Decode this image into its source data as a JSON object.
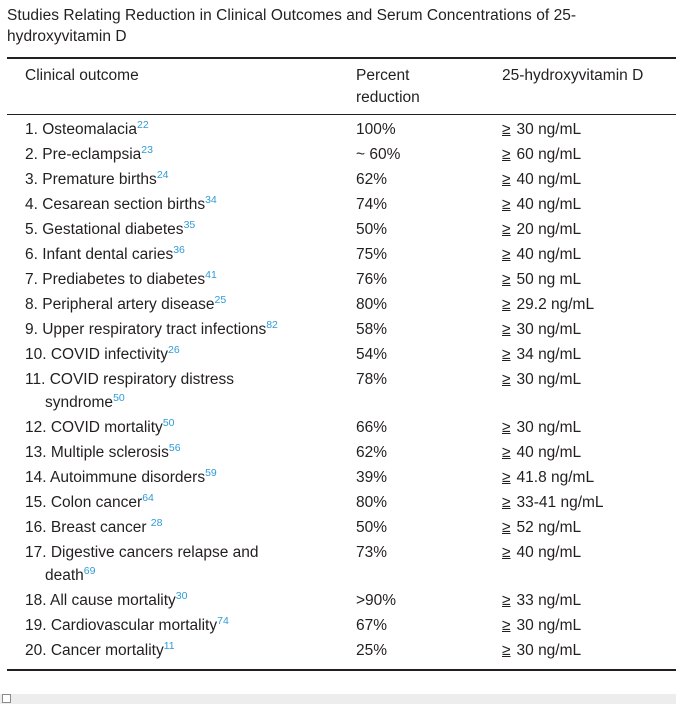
{
  "caption": "Studies Relating Reduction in Clinical Outcomes and Serum Concentrations of 25-hydroxyvitamin D",
  "headers": {
    "outcome": "Clinical outcome",
    "percent": "Percent reduction",
    "concentration": "25-hydroxyvitamin D"
  },
  "rows": [
    {
      "outcome": "1. Osteomalacia",
      "ref": "22",
      "percent": "100%",
      "op": "≥",
      "value": "30 ng/mL"
    },
    {
      "outcome": "2. Pre-eclampsia",
      "ref": "23",
      "percent": "~ 60%",
      "op": "≥",
      "value": "60 ng/mL"
    },
    {
      "outcome": "3. Premature births",
      "ref": "24",
      "percent": "62%",
      "op": "≥",
      "value": "40 ng/mL"
    },
    {
      "outcome": "4. Cesarean section births",
      "ref": "34",
      "percent": "74%",
      "op": "≥",
      "value": "40 ng/mL"
    },
    {
      "outcome": "5. Gestational diabetes",
      "ref": "35",
      "percent": "50%",
      "op": "≥",
      "value": "20 ng/mL"
    },
    {
      "outcome": "6. Infant dental caries",
      "ref": "36",
      "percent": "75%",
      "op": "≥",
      "value": "40 ng/mL"
    },
    {
      "outcome": "7. Prediabetes to diabetes",
      "ref": "41",
      "percent": "76%",
      "op": "≥",
      "value": "50 ng mL"
    },
    {
      "outcome": "8. Peripheral artery disease",
      "ref": "25",
      "percent": "80%",
      "op": "≥",
      "value": "29.2 ng/mL"
    },
    {
      "outcome": "9. Upper respiratory tract infections",
      "ref": "82",
      "percent": "58%",
      "op": "≥",
      "value": "30 ng/mL"
    },
    {
      "outcome": "10. COVID infectivity",
      "ref": "26",
      "percent": "54%",
      "op": "≥",
      "value": "34 ng/mL"
    },
    {
      "outcome": "11. COVID respiratory distress",
      "outcome_cont": "syndrome",
      "ref": "50",
      "percent": "78%",
      "op": "≥",
      "value": "30 ng/mL"
    },
    {
      "outcome": "12. COVID mortality",
      "ref": "50",
      "percent": "66%",
      "op": "≥",
      "value": "30 ng/mL"
    },
    {
      "outcome": "13. Multiple sclerosis",
      "ref": "56",
      "percent": "62%",
      "op": "≥",
      "value": "40 ng/mL"
    },
    {
      "outcome": "14. Autoimmune disorders",
      "ref": "59",
      "percent": "39%",
      "op": "≥",
      "value": "41.8 ng/mL"
    },
    {
      "outcome": "15. Colon cancer",
      "ref": "64",
      "percent": "80%",
      "op": "≥",
      "value": "33-41 ng/mL"
    },
    {
      "outcome": "16. Breast cancer ",
      "ref": "28",
      "percent": "50%",
      "op": "≥",
      "value": "52 ng/mL"
    },
    {
      "outcome": "17. Digestive cancers relapse and",
      "outcome_cont": "death",
      "ref": "69",
      "percent": "73%",
      "op": "≥",
      "value": "40 ng/mL"
    },
    {
      "outcome": "18. All cause mortality",
      "ref": "30",
      "percent": ">90%",
      "op": "≥",
      "value": "33 ng/mL"
    },
    {
      "outcome": "19. Cardiovascular mortality",
      "ref": "74",
      "percent": "67%",
      "op": "≥",
      "value": "30 ng/mL"
    },
    {
      "outcome": "20. Cancer mortality",
      "ref": "11",
      "percent": "25%",
      "op": "≥",
      "value": "30 ng/mL"
    }
  ]
}
